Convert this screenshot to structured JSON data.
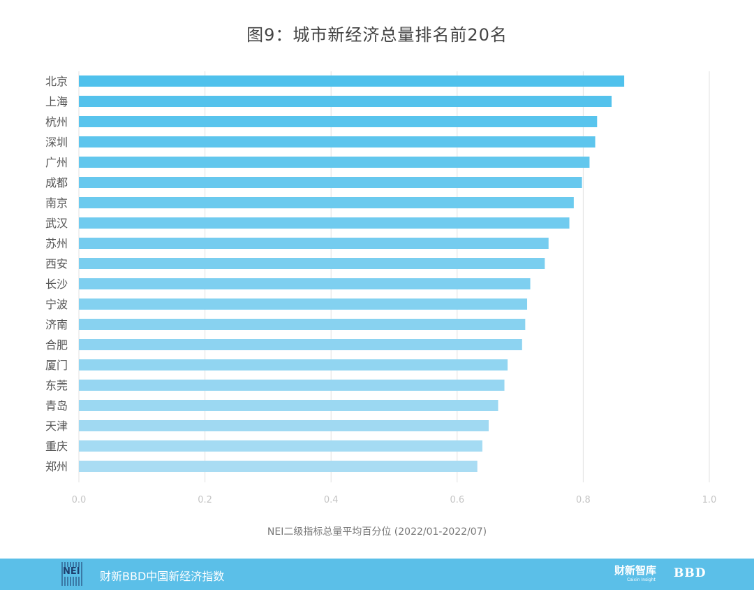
{
  "title": "图9：城市新经济总量排名前20名",
  "footer": {
    "logo_text": "NEI",
    "title": "财新BBD中国新经济指数",
    "brand_caixin": "财新智库",
    "brand_caixin_sub": "Caixin Insight",
    "brand_bbd": "BBD"
  },
  "chart_data": {
    "type": "bar",
    "orientation": "horizontal",
    "title": "图9：城市新经济总量排名前20名",
    "xlabel": "NEI二级指标总量平均百分位 (2022/01-2022/07)",
    "ylabel": "",
    "xlim": [
      0,
      1.0
    ],
    "xticks": [
      "0.0",
      "0.2",
      "0.4",
      "0.6",
      "0.8",
      "1.0"
    ],
    "grid": "vertical",
    "categories": [
      "北京",
      "上海",
      "杭州",
      "深圳",
      "广州",
      "成都",
      "南京",
      "武汉",
      "苏州",
      "西安",
      "长沙",
      "宁波",
      "济南",
      "合肥",
      "厦门",
      "东莞",
      "青岛",
      "天津",
      "重庆",
      "郑州"
    ],
    "values": [
      0.865,
      0.845,
      0.822,
      0.819,
      0.81,
      0.798,
      0.785,
      0.778,
      0.745,
      0.739,
      0.716,
      0.711,
      0.708,
      0.703,
      0.68,
      0.675,
      0.665,
      0.65,
      0.64,
      0.632
    ],
    "bar_color_start": "#4fc1ec",
    "bar_color_end": "#a9dcf3"
  }
}
